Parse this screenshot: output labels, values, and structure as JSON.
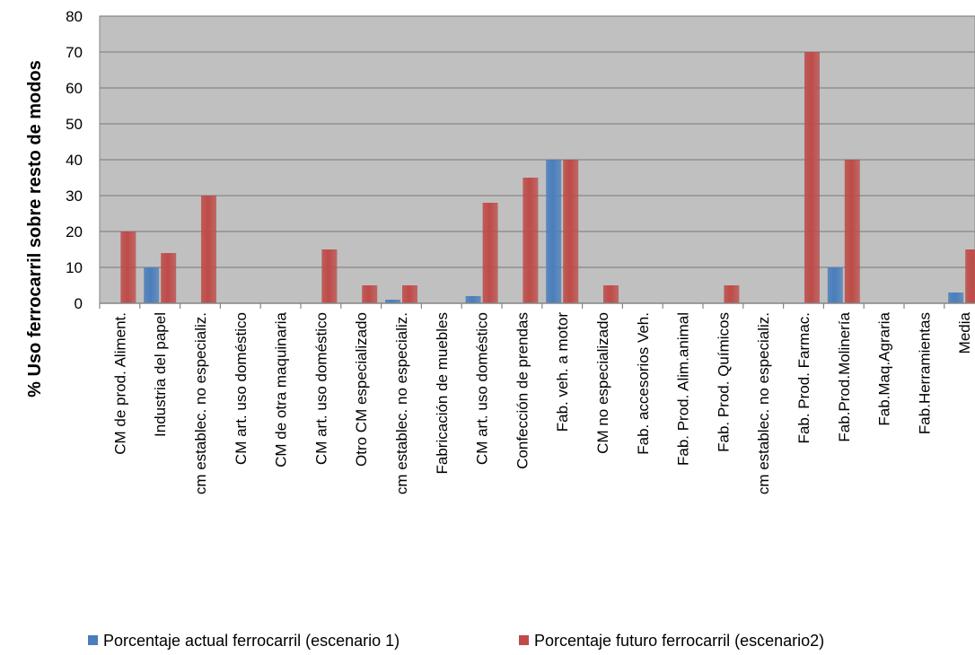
{
  "chart_data": {
    "type": "bar",
    "title": "",
    "xlabel": "",
    "ylabel": "% Uso ferrocarril sobre resto de modos",
    "ylim": [
      0,
      80
    ],
    "yticks": [
      "0",
      "10",
      "20",
      "30",
      "40",
      "50",
      "60",
      "70",
      "80"
    ],
    "grid": true,
    "legend_position": "bottom",
    "categories": [
      "CM de prod. Aliment.",
      "Industria del papel",
      "cm establec. no especializ.",
      "CM art. uso doméstico",
      "CM de otra maquinaria",
      "CM art. uso doméstico",
      "Otro CM especializado",
      "cm establec. no especializ.",
      "Fabricación de muebles",
      "CM art. uso doméstico",
      "Confección de prendas",
      "Fab. veh. a motor",
      "CM no especializado",
      "Fab. accesorios Veh.",
      "Fab. Prod. Alim.animal",
      "Fab. Prod. Químicos",
      "cm establec. no especializ.",
      "Fab. Prod. Farmac.",
      "Fab.Prod.Molinería",
      "Fab.Maq.Agraria",
      "Fab.Herramientas",
      "Media"
    ],
    "series": [
      {
        "name": "Porcentaje actual ferrocarril (escenario 1)",
        "color": "#4a7ebb",
        "values": [
          0,
          10,
          0,
          0,
          0,
          0,
          0,
          1,
          0,
          2,
          0,
          40,
          0,
          0,
          0,
          0,
          0,
          0,
          10,
          0,
          0,
          3
        ]
      },
      {
        "name": "Porcentaje futuro ferrocarril (escenario2)",
        "color": "#be4b48",
        "values": [
          20,
          14,
          30,
          0,
          0,
          15,
          5,
          5,
          0,
          28,
          35,
          40,
          5,
          0,
          0,
          5,
          0,
          70,
          40,
          0,
          0,
          15
        ]
      }
    ],
    "colors": {
      "plot_background": "#c0c0c0",
      "gridline": "#868686"
    }
  }
}
